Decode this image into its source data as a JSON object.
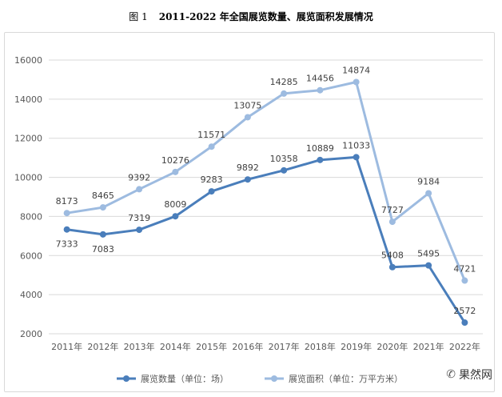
{
  "figure": {
    "label": "图 1",
    "title": "2011-2022 年全国展览数量、展览面积发展情况"
  },
  "watermark": {
    "text": "果然网",
    "icon": "wechat-icon"
  },
  "chart_data": {
    "type": "line",
    "categories": [
      "2011年",
      "2012年",
      "2013年",
      "2014年",
      "2015年",
      "2016年",
      "2017年",
      "2018年",
      "2019年",
      "2020年",
      "2021年",
      "2022年"
    ],
    "series": [
      {
        "name": "展览数量（单位：场）",
        "color": "#4a7ebb",
        "values": [
          7333,
          7083,
          7319,
          8009,
          9283,
          9892,
          10358,
          10889,
          11033,
          5408,
          5495,
          2572
        ],
        "label_pos": [
          "below",
          "below",
          "above",
          "above",
          "above",
          "above",
          "above",
          "above",
          "above",
          "above",
          "above",
          "above"
        ]
      },
      {
        "name": "展览面积（单位：万平方米）",
        "color": "#9dbbe0",
        "values": [
          8173,
          8465,
          9392,
          10276,
          11571,
          13075,
          14285,
          14456,
          14874,
          7727,
          9184,
          4721
        ],
        "label_pos": [
          "above",
          "above",
          "above",
          "above",
          "above",
          "above",
          "above",
          "above",
          "above",
          "above",
          "above",
          "above"
        ]
      }
    ],
    "yticks": [
      2000,
      4000,
      6000,
      8000,
      10000,
      12000,
      14000,
      16000
    ],
    "ylim": [
      2000,
      16000
    ],
    "grid": true,
    "legend": "bottom"
  }
}
